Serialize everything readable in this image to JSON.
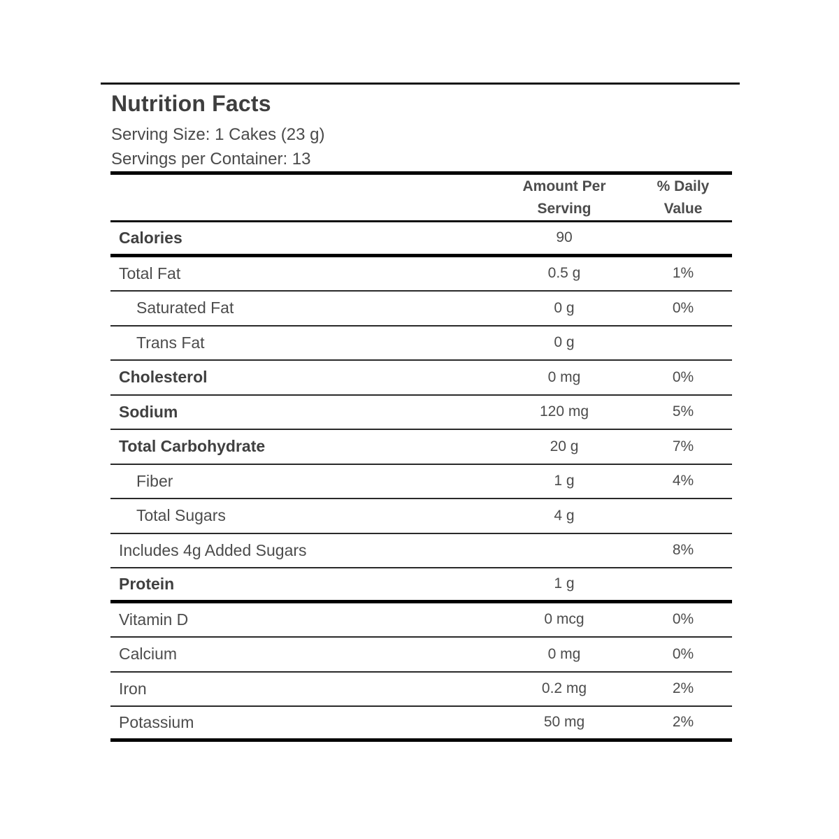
{
  "header": {
    "title": "Nutrition Facts",
    "serving_size": "Serving Size: 1 Cakes (23 g)",
    "servings_per_container": "Servings per Container: 13"
  },
  "table": {
    "columns": {
      "amount_line1": "Amount Per",
      "amount_line2": "Serving",
      "daily_line1": "% Daily",
      "daily_line2": "Value"
    },
    "rows": [
      {
        "label": "Calories",
        "amount": "90",
        "daily": "",
        "bold": true,
        "indent": false,
        "after": "thick"
      },
      {
        "label": "Total Fat",
        "amount": "0.5 g",
        "daily": "1%",
        "bold": false,
        "indent": false,
        "after": "thin"
      },
      {
        "label": "Saturated Fat",
        "amount": "0 g",
        "daily": "0%",
        "bold": false,
        "indent": true,
        "after": "thin"
      },
      {
        "label": "Trans Fat",
        "amount": "0 g",
        "daily": "",
        "bold": false,
        "indent": true,
        "after": "thin"
      },
      {
        "label": "Cholesterol",
        "amount": "0 mg",
        "daily": "0%",
        "bold": true,
        "indent": false,
        "after": "thin"
      },
      {
        "label": "Sodium",
        "amount": "120 mg",
        "daily": "5%",
        "bold": true,
        "indent": false,
        "after": "thin"
      },
      {
        "label": "Total Carbohydrate",
        "amount": "20 g",
        "daily": "7%",
        "bold": true,
        "indent": false,
        "after": "thin"
      },
      {
        "label": "Fiber",
        "amount": "1 g",
        "daily": "4%",
        "bold": false,
        "indent": true,
        "after": "thin"
      },
      {
        "label": "Total Sugars",
        "amount": "4 g",
        "daily": "",
        "bold": false,
        "indent": true,
        "after": "thin"
      },
      {
        "label": "Includes 4g Added Sugars",
        "amount": "",
        "daily": "8%",
        "bold": false,
        "indent": false,
        "after": "thin"
      },
      {
        "label": "Protein",
        "amount": "1 g",
        "daily": "",
        "bold": true,
        "indent": false,
        "after": "thick"
      },
      {
        "label": "Vitamin D",
        "amount": "0 mcg",
        "daily": "0%",
        "bold": false,
        "indent": false,
        "after": "thin"
      },
      {
        "label": "Calcium",
        "amount": "0 mg",
        "daily": "0%",
        "bold": false,
        "indent": false,
        "after": "thin"
      },
      {
        "label": "Iron",
        "amount": "0.2 mg",
        "daily": "2%",
        "bold": false,
        "indent": false,
        "after": "thin"
      },
      {
        "label": "Potassium",
        "amount": "50 mg",
        "daily": "2%",
        "bold": false,
        "indent": false,
        "after": "thick"
      }
    ]
  },
  "colors": {
    "background": "#ffffff",
    "text": "#4a4a4a",
    "bold_text": "#3e3e3e",
    "rule": "#000000"
  }
}
